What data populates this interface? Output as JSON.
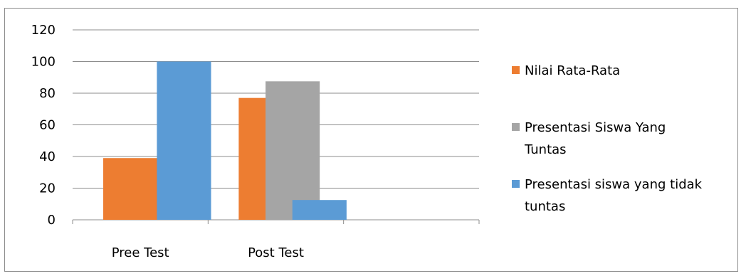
{
  "chart_data": {
    "type": "bar",
    "categories": [
      "Pree Test",
      "Post Test",
      ""
    ],
    "series": [
      {
        "name": "Nilai Rata-Rata",
        "values": [
          39,
          77,
          null
        ],
        "color": "#ED7D31"
      },
      {
        "name": "Presentasi Siswa Yang Tuntas",
        "values": [
          0,
          87.5,
          null
        ],
        "color": "#A5A5A5"
      },
      {
        "name": "Presentasi siswa yang tidak tuntas",
        "values": [
          100,
          12.5,
          null
        ],
        "color": "#5B9BD5"
      }
    ],
    "ylim": [
      0,
      120
    ],
    "yticks": [
      0,
      20,
      40,
      60,
      80,
      100,
      120
    ],
    "grid": true,
    "legend_position": "right",
    "legend": {
      "items": [
        {
          "lines": [
            "Nilai Rata-Rata"
          ],
          "color": "#ED7D31"
        },
        {
          "lines": [
            "Presentasi Siswa Yang",
            "Tuntas"
          ],
          "color": "#A5A5A5"
        },
        {
          "lines": [
            "Presentasi siswa yang tidak",
            "tuntas"
          ],
          "color": "#5B9BD5"
        }
      ]
    },
    "title": "",
    "xlabel": "",
    "ylabel": ""
  }
}
